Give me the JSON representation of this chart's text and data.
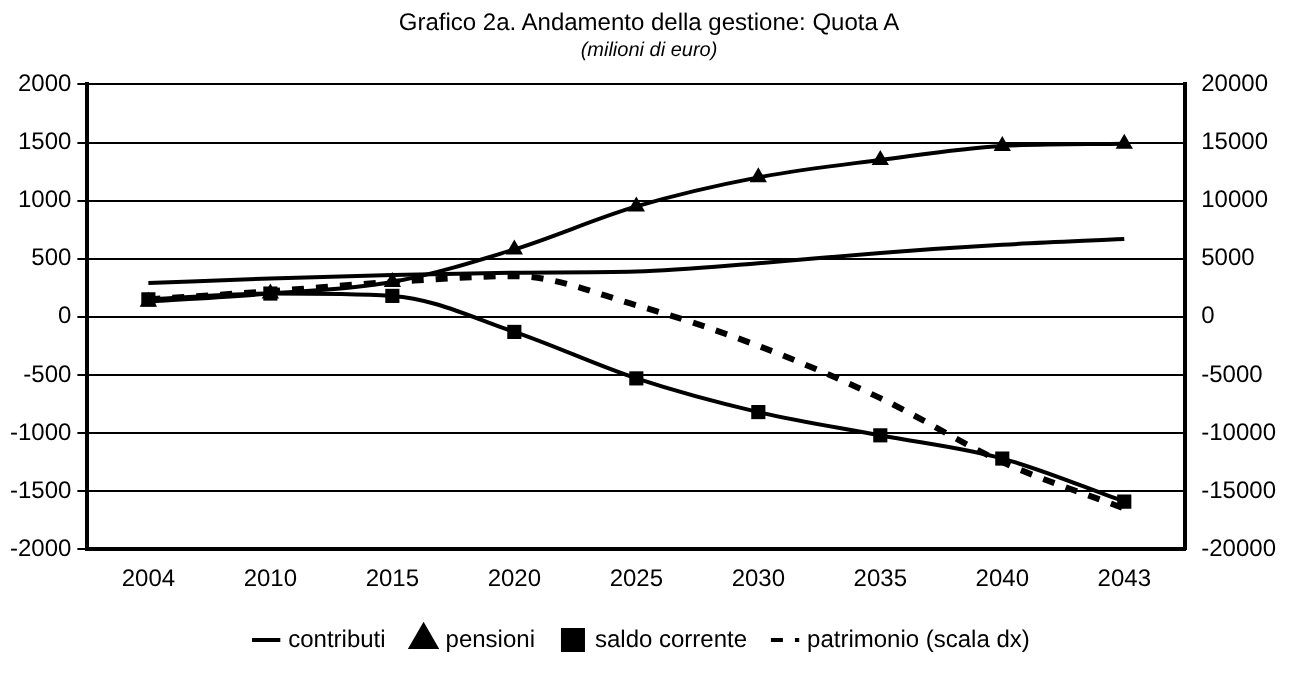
{
  "chart_data": {
    "type": "line",
    "title": "Grafico 2a. Andamento della gestione: Quota A",
    "subtitle": "(milioni di euro)",
    "categories": [
      "2004",
      "2010",
      "2015",
      "2020",
      "2025",
      "2030",
      "2035",
      "2040",
      "2043"
    ],
    "series": [
      {
        "name": "contributi",
        "color": "#000000",
        "marker": "none",
        "line_style": "solid",
        "values": [
          290,
          330,
          360,
          380,
          390,
          460,
          550,
          620,
          670
        ]
      },
      {
        "name": "pensioni",
        "color": "#000000",
        "marker": "triangle",
        "line_style": "solid",
        "values": [
          130,
          200,
          300,
          580,
          950,
          1200,
          1350,
          1470,
          1490
        ]
      },
      {
        "name": "saldo corrente",
        "color": "#000000",
        "marker": "square",
        "line_style": "solid",
        "values": [
          150,
          200,
          180,
          -130,
          -530,
          -820,
          -1020,
          -1220,
          -1590
        ]
      },
      {
        "name": "patrimonio (scala dx)",
        "color": "#000000",
        "marker": "none",
        "line_style": "dashed",
        "axis": "y2",
        "values": [
          1500,
          2200,
          3000,
          3500,
          1000,
          -2500,
          -7000,
          -12500,
          -16500
        ]
      }
    ],
    "ylim": [
      -2000,
      2000
    ],
    "yticks": [
      -2000,
      -1500,
      -1000,
      -500,
      0,
      500,
      1000,
      1500,
      2000
    ],
    "y2lim": [
      -20000,
      20000
    ],
    "y2ticks": [
      -20000,
      -15000,
      -10000,
      -5000,
      0,
      5000,
      10000,
      15000,
      20000
    ],
    "grid": "y",
    "legend": "bottom"
  }
}
